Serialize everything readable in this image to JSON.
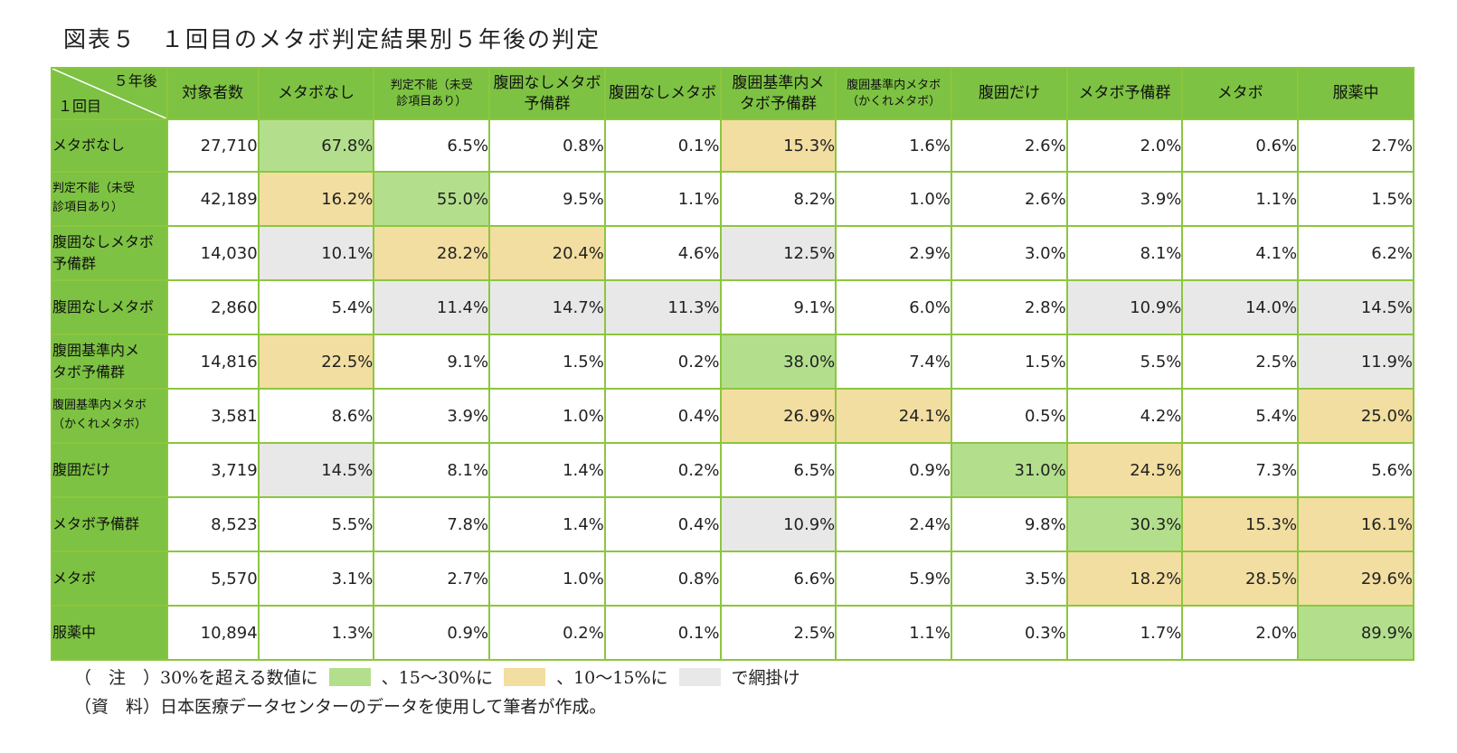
{
  "title": "図表５　１回目のメタボ判定結果別５年後の判定",
  "colors": {
    "header_green": "#7dc242",
    "border_green": "#8cc63f",
    "over30_green": "#b3df8d",
    "range15_30_yellow": "#f2dea0",
    "range10_15_gray": "#e8e8e8"
  },
  "table": {
    "corner_top": "５年後",
    "corner_bottom": "１回目",
    "columns": [
      "対象者数",
      "メタボなし",
      "判定不能（未受\n診項目あり）",
      "腹囲なしメタボ\n予備群",
      "腹囲なしメタボ",
      "腹囲基準内メ\nタボ予備群",
      "腹囲基準内メタボ\n（かくれメタボ）",
      "腹囲だけ",
      "メタボ予備群",
      "メタボ",
      "服薬中"
    ],
    "rows": [
      {
        "label": "メタボなし",
        "count": "27,710",
        "values": [
          "67.8%",
          "6.5%",
          "0.8%",
          "0.1%",
          "15.3%",
          "1.6%",
          "2.6%",
          "2.0%",
          "0.6%",
          "2.7%"
        ],
        "shade": [
          "g",
          "",
          "",
          "",
          "y",
          "",
          "",
          "",
          "",
          ""
        ]
      },
      {
        "label": "判定不能（未受\n診項目あり）",
        "count": "42,189",
        "values": [
          "16.2%",
          "55.0%",
          "9.5%",
          "1.1%",
          "8.2%",
          "1.0%",
          "2.6%",
          "3.9%",
          "1.1%",
          "1.5%"
        ],
        "shade": [
          "y",
          "g",
          "",
          "",
          "",
          "",
          "",
          "",
          "",
          ""
        ]
      },
      {
        "label": "腹囲なしメタボ\n予備群",
        "count": "14,030",
        "values": [
          "10.1%",
          "28.2%",
          "20.4%",
          "4.6%",
          "12.5%",
          "2.9%",
          "3.0%",
          "8.1%",
          "4.1%",
          "6.2%"
        ],
        "shade": [
          "s",
          "y",
          "y",
          "",
          "s",
          "",
          "",
          "",
          "",
          ""
        ]
      },
      {
        "label": "腹囲なしメタボ",
        "count": "2,860",
        "values": [
          "5.4%",
          "11.4%",
          "14.7%",
          "11.3%",
          "9.1%",
          "6.0%",
          "2.8%",
          "10.9%",
          "14.0%",
          "14.5%"
        ],
        "shade": [
          "",
          "s",
          "s",
          "s",
          "",
          "",
          "",
          "s",
          "s",
          "s"
        ]
      },
      {
        "label": "腹囲基準内メ\nタボ予備群",
        "count": "14,816",
        "values": [
          "22.5%",
          "9.1%",
          "1.5%",
          "0.2%",
          "38.0%",
          "7.4%",
          "1.5%",
          "5.5%",
          "2.5%",
          "11.9%"
        ],
        "shade": [
          "y",
          "",
          "",
          "",
          "g",
          "",
          "",
          "",
          "",
          "s"
        ]
      },
      {
        "label": "腹囲基準内メタボ\n（かくれメタボ）",
        "count": "3,581",
        "values": [
          "8.6%",
          "3.9%",
          "1.0%",
          "0.4%",
          "26.9%",
          "24.1%",
          "0.5%",
          "4.2%",
          "5.4%",
          "25.0%"
        ],
        "shade": [
          "",
          "",
          "",
          "",
          "y",
          "y",
          "",
          "",
          "",
          "y"
        ]
      },
      {
        "label": "腹囲だけ",
        "count": "3,719",
        "values": [
          "14.5%",
          "8.1%",
          "1.4%",
          "0.2%",
          "6.5%",
          "0.9%",
          "31.0%",
          "24.5%",
          "7.3%",
          "5.6%"
        ],
        "shade": [
          "s",
          "",
          "",
          "",
          "",
          "",
          "g",
          "y",
          "",
          ""
        ]
      },
      {
        "label": "メタボ予備群",
        "count": "8,523",
        "values": [
          "5.5%",
          "7.8%",
          "1.4%",
          "0.4%",
          "10.9%",
          "2.4%",
          "9.8%",
          "30.3%",
          "15.3%",
          "16.1%"
        ],
        "shade": [
          "",
          "",
          "",
          "",
          "s",
          "",
          "",
          "g",
          "y",
          "y"
        ]
      },
      {
        "label": "メタボ",
        "count": "5,570",
        "values": [
          "3.1%",
          "2.7%",
          "1.0%",
          "0.8%",
          "6.6%",
          "5.9%",
          "3.5%",
          "18.2%",
          "28.5%",
          "29.6%"
        ],
        "shade": [
          "",
          "",
          "",
          "",
          "",
          "",
          "",
          "y",
          "y",
          "y"
        ]
      },
      {
        "label": "服薬中",
        "count": "10,894",
        "values": [
          "1.3%",
          "0.9%",
          "0.2%",
          "0.1%",
          "2.5%",
          "1.1%",
          "0.3%",
          "1.7%",
          "2.0%",
          "89.9%"
        ],
        "shade": [
          "",
          "",
          "",
          "",
          "",
          "",
          "",
          "",
          "",
          "g"
        ]
      }
    ]
  },
  "notes": {
    "line1_prefix": "（　注　）30%を超える数値に",
    "line1_mid1": "、15〜30%に",
    "line1_mid2": "、10〜15%に",
    "line1_suffix": "で網掛け",
    "line2": "（資　料）日本医療データセンターのデータを使用して筆者が作成。"
  }
}
